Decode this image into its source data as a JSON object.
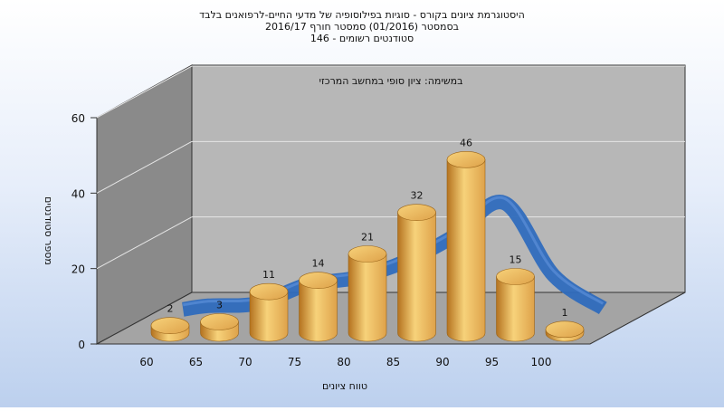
{
  "chart_data": {
    "type": "bar",
    "title": [
      "היסטוגרמת ציונים בקורס - סוגיות בפילוסופיה של מדעי החיים-לרפואנים בלבד",
      "בסמסטר (01/2016) סמסטר חורף 2016/17",
      "סטודנטים רשומים - 146"
    ],
    "subtitle": "במשימה: ציון סופי במחשב המרכזי",
    "xlabel": "טווח ציונים",
    "ylabel": "מספר סטודנטים",
    "categories": [
      "60",
      "65",
      "70",
      "75",
      "80",
      "85",
      "90",
      "95",
      "100"
    ],
    "series": [
      {
        "values": [
          2,
          3,
          11,
          14,
          21,
          32,
          46,
          15,
          1
        ]
      }
    ],
    "ylim": [
      0,
      60
    ],
    "yticks": [
      0,
      20,
      40,
      60
    ],
    "grid": true,
    "style": "3d-cylinder",
    "colors": {
      "bar_light": "#f7d27a",
      "bar_mid": "#dea24a",
      "bar_dark": "#b4721f",
      "curve": "#2f6bbd",
      "back_wall": "#b7b7b7",
      "side_wall": "#8a8a8a",
      "floor": "#a4a4a4"
    }
  }
}
